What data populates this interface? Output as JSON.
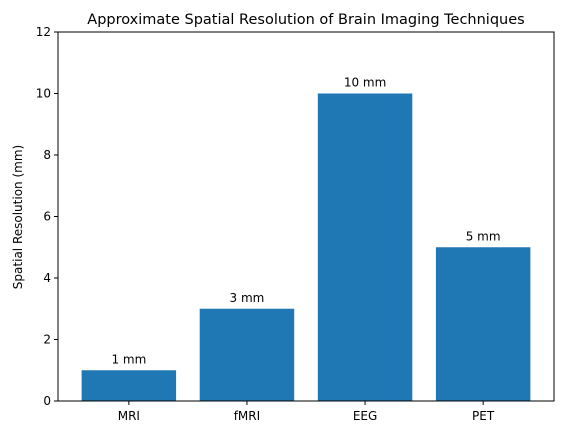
{
  "chart_data": {
    "type": "bar",
    "title": "Approximate Spatial Resolution of Brain Imaging Techniques",
    "xlabel": "",
    "ylabel": "Spatial Resolution (mm)",
    "categories": [
      "MRI",
      "fMRI",
      "EEG",
      "PET"
    ],
    "values": [
      1,
      3,
      10,
      5
    ],
    "data_labels": [
      "1 mm",
      "3 mm",
      "10 mm",
      "5 mm"
    ],
    "ylim": [
      0,
      12
    ],
    "yticks": [
      0,
      2,
      4,
      6,
      8,
      10,
      12
    ],
    "bar_color": "#1f77b4",
    "grid": false,
    "legend": "none"
  }
}
